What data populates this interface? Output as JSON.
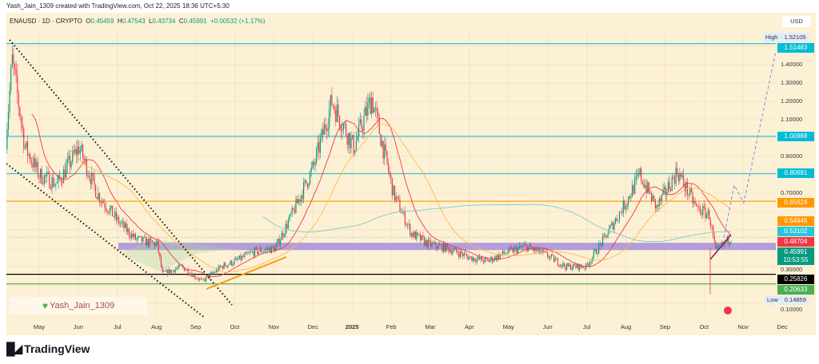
{
  "credit": "Yash_Jain_1309 created with TradingView.com, Oct 22, 2025 18:36 UTC+5:30",
  "legend": {
    "symbol": "ENAUSD · 1D · CRYPTO",
    "o_label": "O",
    "o": "0.45459",
    "h_label": "H",
    "h": "0.47543",
    "l_label": "L",
    "l": "0.43734",
    "c_label": "C",
    "c": "0.45991",
    "change": "+0.00532 (+1.17%)"
  },
  "currency": "USD",
  "watermark": "Yash_Jain_1309",
  "brand": "TradingView",
  "colors": {
    "background": "#fdf1d5",
    "up": "#089981",
    "down": "#f23645",
    "cyan": "#26c6da",
    "orange": "#ff9800",
    "purple_zone": "#b39ddb",
    "projection": "#6f8fe8"
  },
  "chart_data": {
    "type": "candlestick",
    "symbol": "ENAUSD",
    "timeframe": "1D",
    "y_range": [
      0.1,
      1.55
    ],
    "y_ticks": [
      "1.40000",
      "1.30000",
      "1.20000",
      "1.10000",
      "0.90000",
      "0.70000",
      "0.30000",
      "0.10000"
    ],
    "x_ticks": [
      "May",
      "Jun",
      "Jul",
      "Aug",
      "Sep",
      "Oct",
      "Nov",
      "Dec",
      "2025",
      "Feb",
      "Mar",
      "Apr",
      "May",
      "Jun",
      "Jul",
      "Aug",
      "Sep",
      "Oct",
      "Nov",
      "Dec"
    ],
    "approx_closes": [
      [
        "2024-04-05",
        1.0
      ],
      [
        "2024-04-10",
        1.42
      ],
      [
        "2024-04-20",
        0.95
      ],
      [
        "2024-05-01",
        0.8
      ],
      [
        "2024-05-15",
        0.75
      ],
      [
        "2024-06-01",
        0.95
      ],
      [
        "2024-06-15",
        0.7
      ],
      [
        "2024-07-01",
        0.55
      ],
      [
        "2024-07-15",
        0.45
      ],
      [
        "2024-08-01",
        0.42
      ],
      [
        "2024-08-05",
        0.26
      ],
      [
        "2024-08-20",
        0.3
      ],
      [
        "2024-09-05",
        0.22
      ],
      [
        "2024-09-20",
        0.3
      ],
      [
        "2024-10-01",
        0.33
      ],
      [
        "2024-10-15",
        0.38
      ],
      [
        "2024-11-01",
        0.4
      ],
      [
        "2024-11-15",
        0.6
      ],
      [
        "2024-12-01",
        0.85
      ],
      [
        "2024-12-15",
        1.2
      ],
      [
        "2025-01-01",
        0.95
      ],
      [
        "2025-01-15",
        1.22
      ],
      [
        "2025-02-01",
        0.7
      ],
      [
        "2025-02-15",
        0.48
      ],
      [
        "2025-03-01",
        0.42
      ],
      [
        "2025-03-15",
        0.4
      ],
      [
        "2025-04-01",
        0.35
      ],
      [
        "2025-04-15",
        0.33
      ],
      [
        "2025-05-01",
        0.38
      ],
      [
        "2025-05-15",
        0.41
      ],
      [
        "2025-06-01",
        0.36
      ],
      [
        "2025-06-15",
        0.3
      ],
      [
        "2025-07-01",
        0.3
      ],
      [
        "2025-07-15",
        0.45
      ],
      [
        "2025-08-01",
        0.65
      ],
      [
        "2025-08-12",
        0.8
      ],
      [
        "2025-08-25",
        0.62
      ],
      [
        "2025-09-10",
        0.82
      ],
      [
        "2025-09-25",
        0.62
      ],
      [
        "2025-10-05",
        0.58
      ],
      [
        "2025-10-10",
        0.38
      ],
      [
        "2025-10-22",
        0.45991
      ]
    ],
    "levels": [
      {
        "price": 1.51483,
        "label": "1.51483",
        "color": "#26c6da"
      },
      {
        "price": 1.00988,
        "label": "1.00988",
        "color": "#26c6da"
      },
      {
        "price": 0.80681,
        "label": "0.80681",
        "color": "#26c6da"
      },
      {
        "price": 0.65624,
        "label": "0.65624",
        "color": "#ff9800"
      },
      {
        "price": 0.25826,
        "label": "0.25826",
        "color": "#000000"
      },
      {
        "price": 0.20633,
        "label": "0.20633",
        "color": "#4caf50"
      }
    ],
    "support_zone": [
      0.39,
      0.43
    ],
    "indicator_tags": [
      {
        "label": "0.54945",
        "color": "#ff9800"
      },
      {
        "label": "0.53102",
        "color": "#26c6da"
      },
      {
        "label": "0.48704",
        "color": "#f23645"
      }
    ],
    "last_price": {
      "label": "0.45991",
      "countdown": "10:53:55",
      "color": "#089981"
    },
    "high": {
      "label": "High",
      "value": "1.52105"
    },
    "low": {
      "label": "Low",
      "value": "0.14859"
    }
  }
}
